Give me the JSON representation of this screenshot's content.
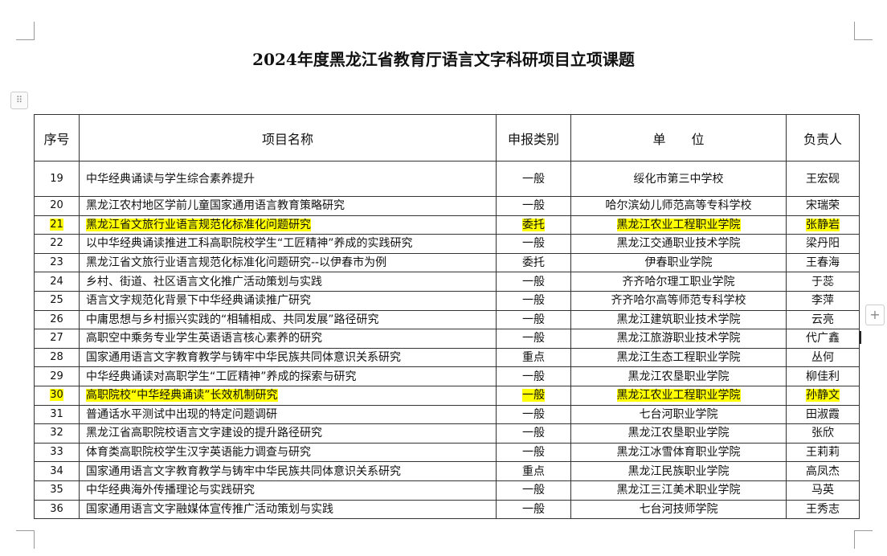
{
  "title": "2024年度黑龙江省教育厅语言文字科研项目立项课题",
  "colors": {
    "highlight": "#ffff00"
  },
  "table": {
    "headers": [
      "序号",
      "项目名称",
      "申报类别",
      "单　　位",
      "负责人"
    ],
    "rows": [
      {
        "no": "19",
        "name": "中华经典诵读与学生综合素养提升",
        "type": "一般",
        "unit": "绥化市第三中学校",
        "leader": "王宏砚",
        "highlighted": false
      },
      {
        "no": "20",
        "name": "黑龙江农村地区学前儿童国家通用语言教育策略研究",
        "type": "一般",
        "unit": "哈尔滨幼儿师范高等专科学校",
        "leader": "宋瑞荣",
        "highlighted": false
      },
      {
        "no": "21",
        "name": "黑龙江省文旅行业语言规范化标准化问题研究",
        "type": "委托",
        "unit": "黑龙江农业工程职业学院",
        "leader": "张静岩",
        "highlighted": true
      },
      {
        "no": "22",
        "name": "以中华经典诵读推进工科高职院校学生“工匠精神”养成的实践研究",
        "type": "一般",
        "unit": "黑龙江交通职业技术学院",
        "leader": "梁丹阳",
        "highlighted": false
      },
      {
        "no": "23",
        "name": "黑龙江省文旅行业语言规范化标准化问题研究--以伊春市为例",
        "type": "委托",
        "unit": "伊春职业学院",
        "leader": "王春海",
        "highlighted": false
      },
      {
        "no": "24",
        "name": "乡村、街道、社区语言文化推广活动策划与实践",
        "type": "一般",
        "unit": "齐齐哈尔理工职业学院",
        "leader": "于蕊",
        "highlighted": false
      },
      {
        "no": "25",
        "name": "语言文字规范化背景下中华经典诵读推广研究",
        "type": "一般",
        "unit": "齐齐哈尔高等师范专科学校",
        "leader": "李萍",
        "highlighted": false
      },
      {
        "no": "26",
        "name": "中庸思想与乡村振兴实践的“相辅相成、共同发展”路径研究",
        "type": "一般",
        "unit": "黑龙江建筑职业技术学院",
        "leader": "云亮",
        "highlighted": false
      },
      {
        "no": "27",
        "name": "高职空中乘务专业学生英语语言核心素养的研究",
        "type": "一般",
        "unit": "黑龙江旅游职业技术学院",
        "leader": "代广鑫",
        "highlighted": false
      },
      {
        "no": "28",
        "name": "国家通用语言文字教育教学与铸牢中华民族共同体意识关系研究",
        "type": "重点",
        "unit": "黑龙江生态工程职业学院",
        "leader": "丛何",
        "highlighted": false
      },
      {
        "no": "29",
        "name": "中华经典诵读对高职学生“工匠精神”养成的探索与研究",
        "type": "一般",
        "unit": "黑龙江农垦职业学院",
        "leader": "柳佳利",
        "highlighted": false
      },
      {
        "no": "30",
        "name": "高职院校“中华经典诵读”长效机制研究",
        "type": "一般",
        "unit": "黑龙江农业工程职业学院",
        "leader": "孙静文",
        "highlighted": true
      },
      {
        "no": "31",
        "name": "普通话水平测试中出现的特定问题调研",
        "type": "一般",
        "unit": "七台河职业学院",
        "leader": "田淑霞",
        "highlighted": false
      },
      {
        "no": "32",
        "name": "黑龙江省高职院校语言文字建设的提升路径研究",
        "type": "一般",
        "unit": "黑龙江农垦职业学院",
        "leader": "张欣",
        "highlighted": false
      },
      {
        "no": "33",
        "name": "体育类高职院校学生汉字英语能力调查与研究",
        "type": "一般",
        "unit": "黑龙江冰雪体育职业学院",
        "leader": "王莉莉",
        "highlighted": false
      },
      {
        "no": "34",
        "name": "国家通用语言文字教育教学与铸牢中华民族共同体意识关系研究",
        "type": "重点",
        "unit": "黑龙江民族职业学院",
        "leader": "高凤杰",
        "highlighted": false
      },
      {
        "no": "35",
        "name": "中华经典海外传播理论与实践研究",
        "type": "一般",
        "unit": "黑龙江三江美术职业学院",
        "leader": "马英",
        "highlighted": false
      },
      {
        "no": "36",
        "name": "国家通用语言文字融媒体宣传推广活动策划与实践",
        "type": "一般",
        "unit": "七台河技师学院",
        "leader": "王秀志",
        "highlighted": false
      }
    ]
  }
}
